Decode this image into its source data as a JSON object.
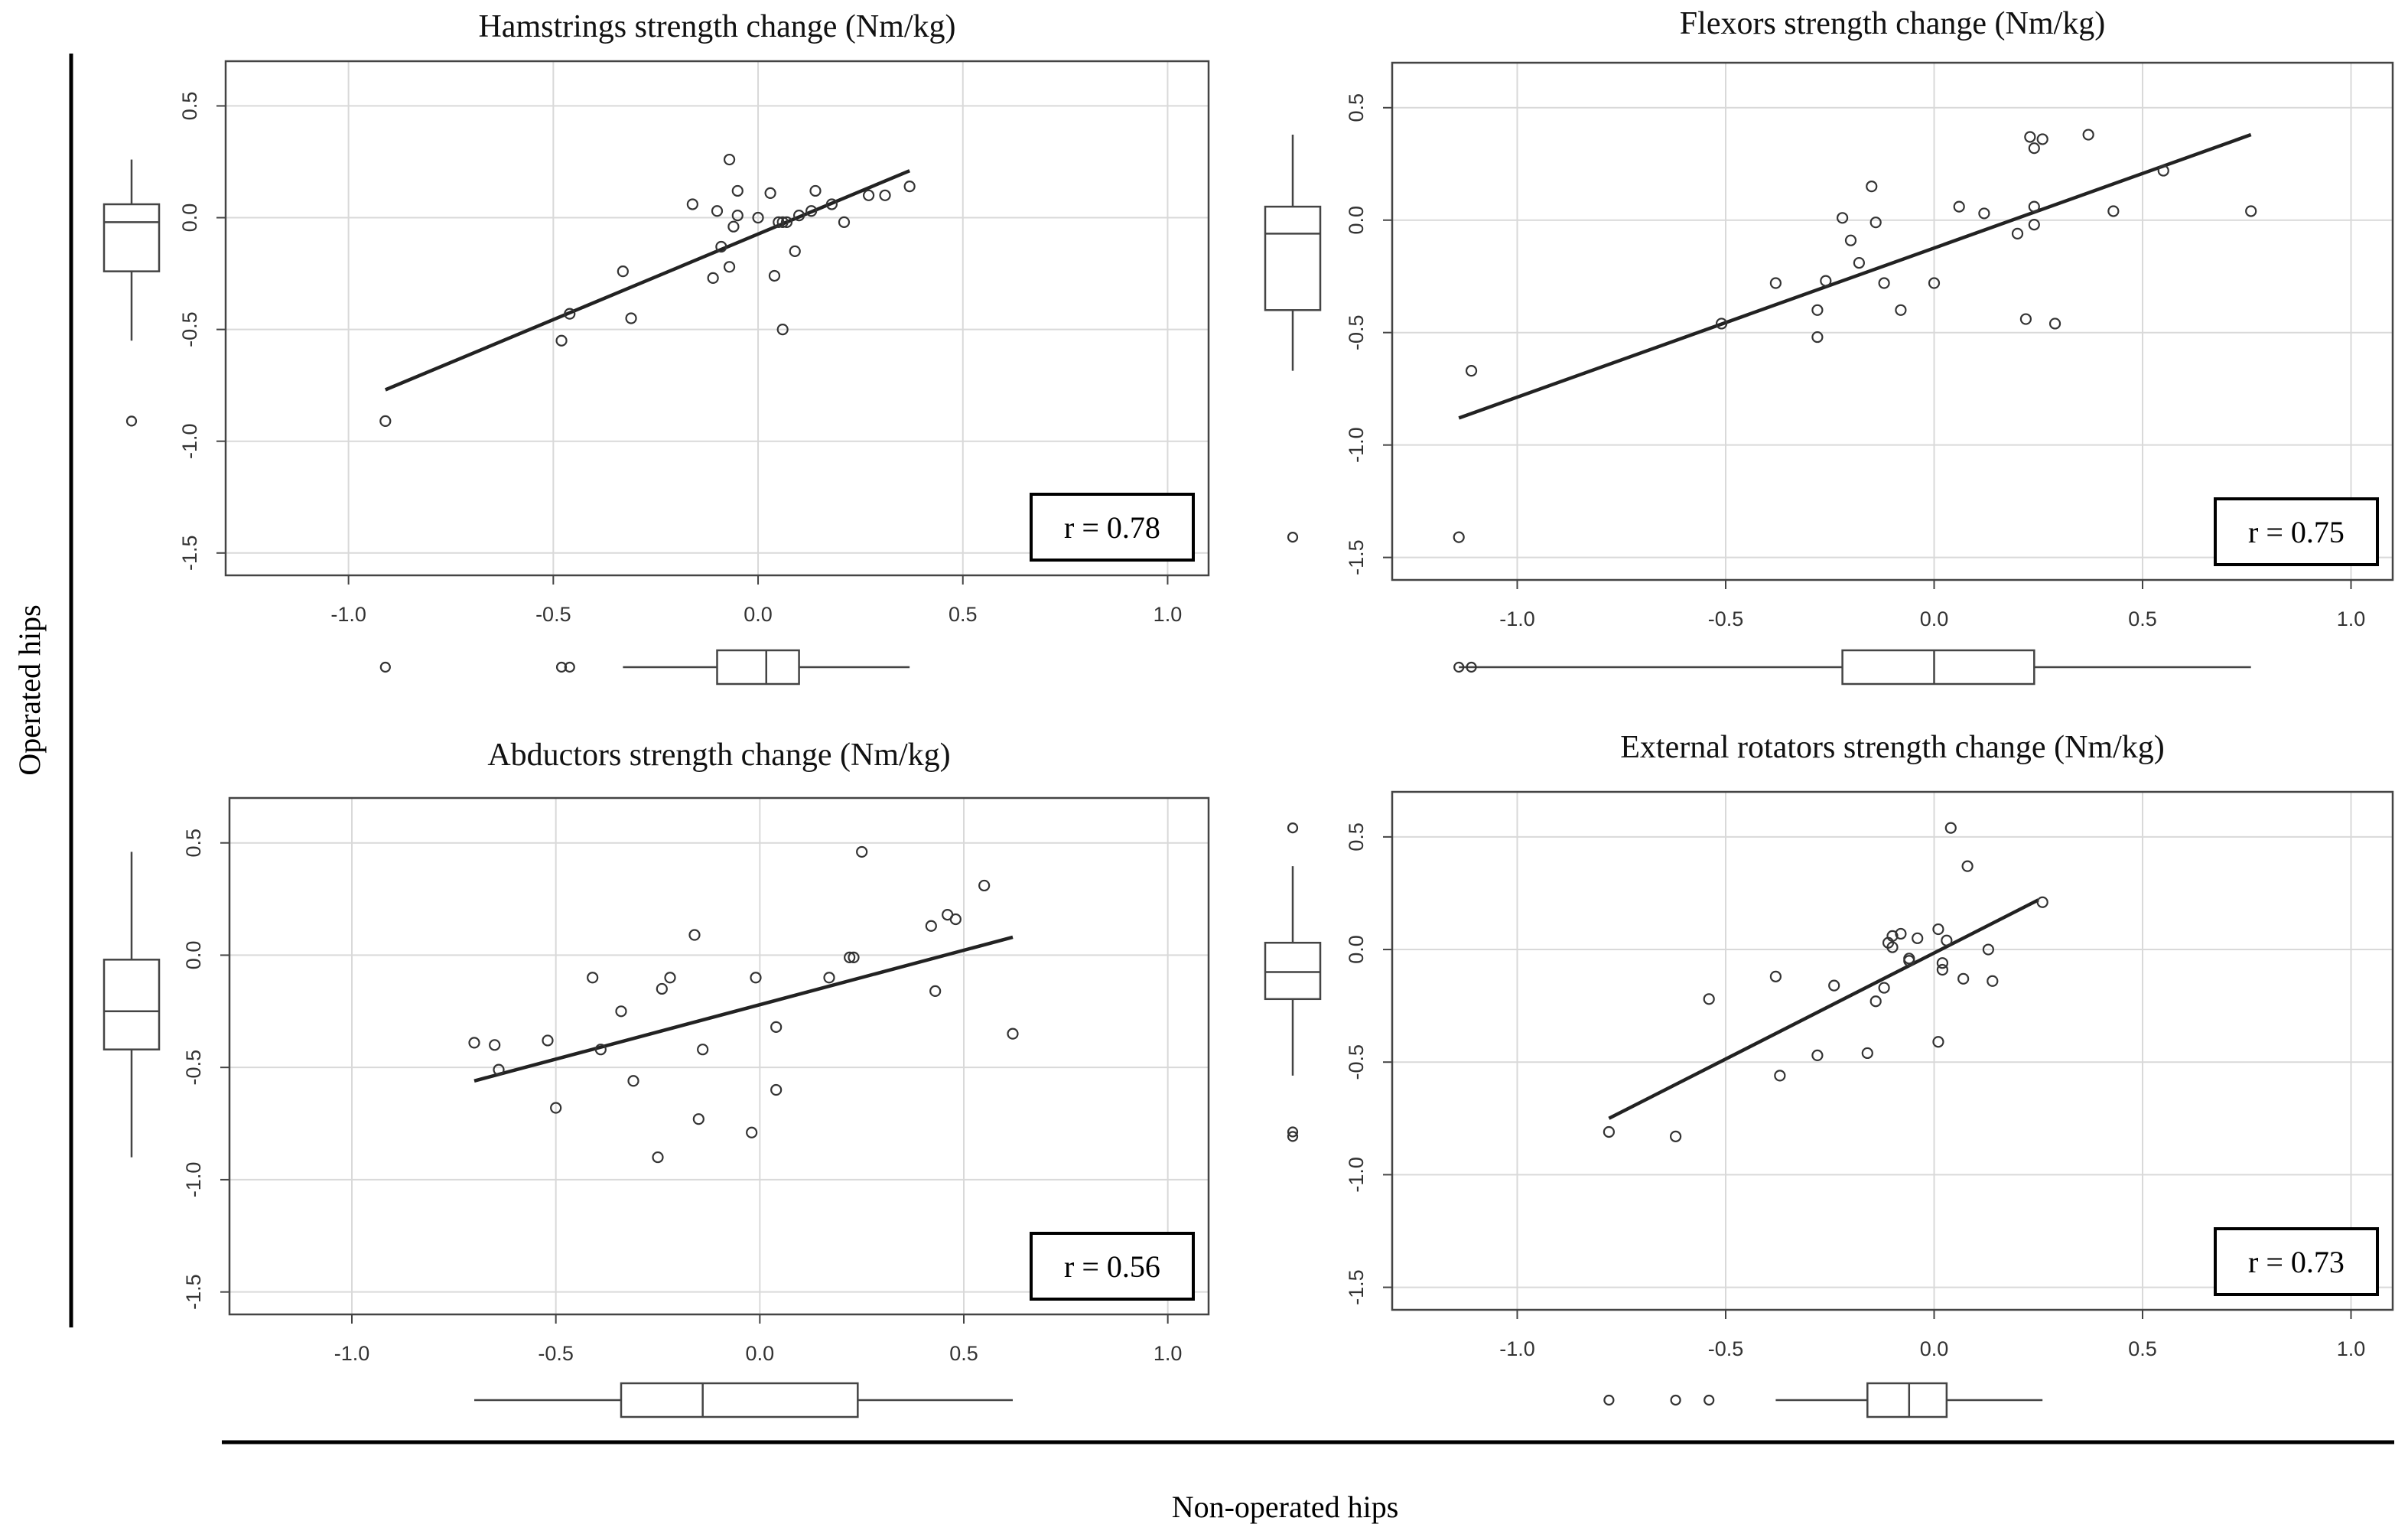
{
  "figure": {
    "y_group_label": "Operated hips",
    "x_group_label": "Non-operated hips",
    "colors": {
      "ink": "#222222",
      "grid": "#d9d9d9",
      "axis": "#444444",
      "point": "#333333"
    }
  },
  "chart_data": [
    {
      "id": "hamstrings",
      "type": "scatter",
      "title": "Hamstrings strength change (Nm/kg)",
      "xlabel": "",
      "ylabel": "",
      "xlim": [
        -1.3,
        1.1
      ],
      "ylim": [
        -1.6,
        0.7
      ],
      "xticks": [
        -1.0,
        -0.5,
        0.0,
        0.5,
        1.0
      ],
      "xtick_labels": [
        "-1.0",
        "-0.5",
        "0.0",
        "0.5",
        "1.0"
      ],
      "yticks": [
        -1.5,
        -1.0,
        -0.5,
        0.0,
        0.5
      ],
      "ytick_labels": [
        "-1.5",
        "-1.0",
        "-0.5",
        "0.0",
        "0.5"
      ],
      "grid": true,
      "correlation_label": "r = 0.78",
      "correlation_box_position": "bottom-right",
      "x": [
        -0.91,
        -0.48,
        -0.46,
        -0.33,
        -0.31,
        -0.16,
        -0.11,
        -0.1,
        -0.09,
        -0.07,
        -0.07,
        -0.06,
        -0.05,
        -0.05,
        0.0,
        0.03,
        0.04,
        0.05,
        0.06,
        0.06,
        0.07,
        0.09,
        0.1,
        0.13,
        0.14,
        0.18,
        0.21,
        0.27,
        0.31,
        0.37
      ],
      "y": [
        -0.91,
        -0.55,
        -0.43,
        -0.24,
        -0.45,
        0.06,
        -0.27,
        0.03,
        -0.13,
        0.26,
        -0.22,
        -0.04,
        0.12,
        0.01,
        0.0,
        0.11,
        -0.26,
        -0.02,
        -0.5,
        -0.02,
        -0.02,
        -0.15,
        0.01,
        0.03,
        0.12,
        0.06,
        -0.02,
        0.1,
        0.1,
        0.14
      ],
      "trend_line": {
        "x": [
          -0.91,
          0.37
        ],
        "y": [
          -0.77,
          0.21
        ]
      },
      "x_box": {
        "min": -0.33,
        "q1": -0.1,
        "median": 0.02,
        "q3": 0.1,
        "max": 0.37,
        "outliers": [
          -0.91,
          -0.48,
          -0.46
        ]
      },
      "y_box": {
        "min": -0.55,
        "q1": -0.24,
        "median": -0.02,
        "q3": 0.06,
        "max": 0.26,
        "outliers": [
          -0.91
        ]
      }
    },
    {
      "id": "flexors",
      "type": "scatter",
      "title": "Flexors strength change (Nm/kg)",
      "xlabel": "",
      "ylabel": "",
      "xlim": [
        -1.3,
        1.1
      ],
      "ylim": [
        -1.6,
        0.7
      ],
      "xticks": [
        -1.0,
        -0.5,
        0.0,
        0.5,
        1.0
      ],
      "xtick_labels": [
        "-1.0",
        "-0.5",
        "0.0",
        "0.5",
        "1.0"
      ],
      "yticks": [
        -1.5,
        -1.0,
        -0.5,
        0.0,
        0.5
      ],
      "ytick_labels": [
        "-1.5",
        "-1.0",
        "-0.5",
        "0.0",
        "0.5"
      ],
      "grid": true,
      "correlation_label": "r = 0.75",
      "correlation_box_position": "bottom-right",
      "x": [
        -1.14,
        -1.11,
        -0.51,
        -0.38,
        -0.28,
        -0.28,
        -0.26,
        -0.22,
        -0.2,
        -0.18,
        -0.15,
        -0.14,
        -0.12,
        -0.08,
        0.0,
        0.06,
        0.12,
        0.2,
        0.22,
        0.23,
        0.24,
        0.24,
        0.24,
        0.26,
        0.29,
        0.37,
        0.43,
        0.55,
        0.76
      ],
      "y": [
        -1.41,
        -0.67,
        -0.46,
        -0.28,
        -0.4,
        -0.52,
        -0.27,
        0.01,
        -0.09,
        -0.19,
        0.15,
        -0.01,
        -0.28,
        -0.4,
        -0.28,
        0.06,
        0.03,
        -0.06,
        -0.44,
        0.37,
        0.32,
        0.06,
        -0.02,
        0.36,
        -0.46,
        0.38,
        0.04,
        0.22,
        0.04
      ],
      "trend_line": {
        "x": [
          -1.14,
          0.76
        ],
        "y": [
          -0.88,
          0.38
        ]
      },
      "x_box": {
        "min": -1.14,
        "q1": -0.22,
        "median": 0.0,
        "q3": 0.24,
        "max": 0.76,
        "outliers": [
          -1.14,
          -1.11
        ]
      },
      "y_box": {
        "min": -0.67,
        "q1": -0.4,
        "median": -0.06,
        "q3": 0.06,
        "max": 0.38,
        "outliers": [
          -1.41
        ]
      }
    },
    {
      "id": "abductors",
      "type": "scatter",
      "title": "Abductors strength change (Nm/kg)",
      "xlabel": "",
      "ylabel": "",
      "xlim": [
        -1.3,
        1.1
      ],
      "ylim": [
        -1.6,
        0.7
      ],
      "xticks": [
        -1.0,
        -0.5,
        0.0,
        0.5,
        1.0
      ],
      "xtick_labels": [
        "-1.0",
        "-0.5",
        "0.0",
        "0.5",
        "1.0"
      ],
      "yticks": [
        -1.5,
        -1.0,
        -0.5,
        0.0,
        0.5
      ],
      "ytick_labels": [
        "-1.5",
        "-1.0",
        "-0.5",
        "0.0",
        "0.5"
      ],
      "grid": true,
      "correlation_label": "r = 0.56",
      "correlation_box_position": "bottom-right",
      "x": [
        -0.7,
        -0.65,
        -0.64,
        -0.52,
        -0.5,
        -0.41,
        -0.39,
        -0.34,
        -0.31,
        -0.25,
        -0.24,
        -0.22,
        -0.16,
        -0.15,
        -0.14,
        -0.02,
        -0.01,
        0.04,
        0.04,
        0.17,
        0.22,
        0.23,
        0.25,
        0.42,
        0.43,
        0.46,
        0.48,
        0.55,
        0.62
      ],
      "y": [
        -0.39,
        -0.4,
        -0.51,
        -0.38,
        -0.68,
        -0.1,
        -0.42,
        -0.25,
        -0.56,
        -0.9,
        -0.15,
        -0.1,
        0.09,
        -0.73,
        -0.42,
        -0.79,
        -0.1,
        -0.32,
        -0.6,
        -0.1,
        -0.01,
        -0.01,
        0.46,
        0.13,
        -0.16,
        0.18,
        0.16,
        0.31,
        -0.35
      ],
      "trend_line": {
        "x": [
          -0.7,
          0.62
        ],
        "y": [
          -0.56,
          0.08
        ]
      },
      "x_box": {
        "min": -0.7,
        "q1": -0.34,
        "median": -0.14,
        "q3": 0.24,
        "max": 0.62,
        "outliers": []
      },
      "y_box": {
        "min": -0.9,
        "q1": -0.42,
        "median": -0.25,
        "q3": -0.02,
        "max": 0.46,
        "outliers": []
      }
    },
    {
      "id": "external-rotators",
      "type": "scatter",
      "title": "External rotators strength change (Nm/kg)",
      "xlabel": "",
      "ylabel": "",
      "xlim": [
        -1.3,
        1.1
      ],
      "ylim": [
        -1.6,
        0.7
      ],
      "xticks": [
        -1.0,
        -0.5,
        0.0,
        0.5,
        1.0
      ],
      "xtick_labels": [
        "-1.0",
        "-0.5",
        "0.0",
        "0.5",
        "1.0"
      ],
      "yticks": [
        -1.5,
        -1.0,
        -0.5,
        0.0,
        0.5
      ],
      "ytick_labels": [
        "-1.5",
        "-1.0",
        "-0.5",
        "0.0",
        "0.5"
      ],
      "grid": true,
      "correlation_label": "r = 0.73",
      "correlation_box_position": "bottom-right",
      "x": [
        -0.78,
        -0.62,
        -0.54,
        -0.38,
        -0.37,
        -0.24,
        -0.28,
        -0.16,
        -0.14,
        -0.12,
        -0.11,
        -0.1,
        -0.1,
        -0.08,
        -0.06,
        -0.06,
        -0.04,
        0.01,
        0.01,
        0.02,
        0.02,
        0.03,
        0.04,
        0.07,
        0.08,
        0.13,
        0.14,
        0.26
      ],
      "y": [
        -0.81,
        -0.83,
        -0.22,
        -0.12,
        -0.56,
        -0.16,
        -0.47,
        -0.46,
        -0.23,
        -0.17,
        0.03,
        0.06,
        0.01,
        0.07,
        -0.04,
        -0.05,
        0.05,
        0.09,
        -0.41,
        -0.06,
        -0.09,
        0.04,
        0.54,
        -0.13,
        0.37,
        0.0,
        -0.14,
        0.21
      ],
      "trend_line": {
        "x": [
          -0.78,
          0.25
        ],
        "y": [
          -0.75,
          0.22
        ]
      },
      "x_box": {
        "min": -0.38,
        "q1": -0.16,
        "median": -0.06,
        "q3": 0.03,
        "max": 0.26,
        "outliers": [
          -0.78,
          -0.62,
          -0.54
        ]
      },
      "y_box": {
        "min": -0.56,
        "q1": -0.22,
        "median": -0.1,
        "q3": 0.03,
        "max": 0.37,
        "outliers": [
          0.54,
          -0.81,
          -0.83
        ]
      }
    }
  ]
}
